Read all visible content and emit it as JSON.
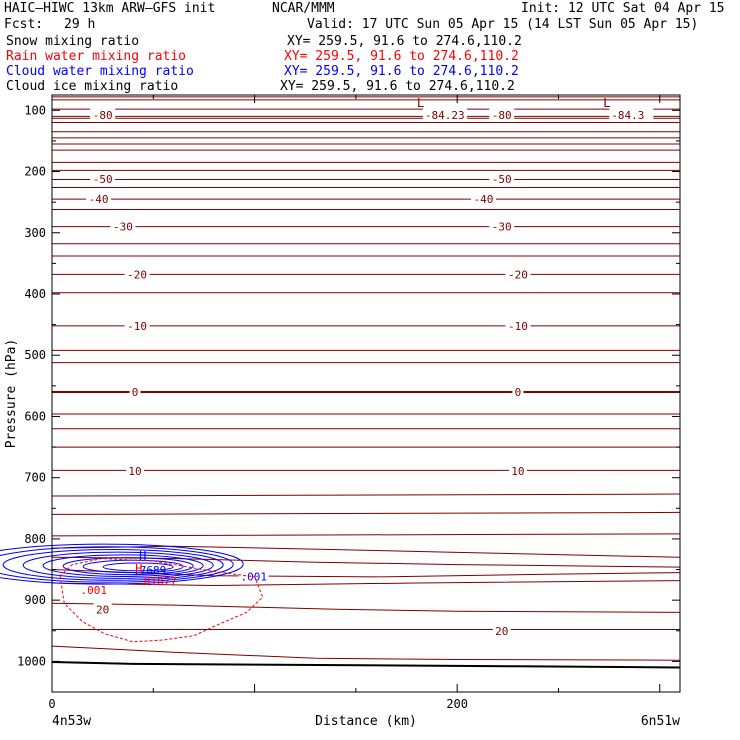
{
  "header": {
    "model": "HAIC–HIWC 13km ARW–GFS init",
    "org": "NCAR/MMM",
    "init": "Init: 12 UTC Sat 04 Apr 15",
    "fcst_label": "Fcst:",
    "fcst_value": "29 h",
    "valid": "Valid: 17 UTC Sun 05 Apr 15 (14 LST Sun 05 Apr 15)"
  },
  "fields": [
    {
      "name": "Snow mixing ratio",
      "xy": "XY= 259.5, 91.6 to 274.6,110.2",
      "color": "#000000"
    },
    {
      "name": "Rain water mixing ratio",
      "xy": "XY= 259.5, 91.6 to 274.6,110.2",
      "color": "#ff0000"
    },
    {
      "name": "Cloud water mixing ratio",
      "xy": "XY= 259.5, 91.6 to 274.6,110.2",
      "color": "#0000ff"
    },
    {
      "name": "Cloud ice mixing ratio",
      "xy": "XY= 259.5, 91.6 to 274.6,110.2",
      "color": "#000000"
    }
  ],
  "chart_data": {
    "type": "cross-section contour",
    "xlabel": "Distance (km)",
    "ylabel": "Pressure (hPa)",
    "x_start_label": "4n53w",
    "x_end_label": "6n51w",
    "xlim": [
      0,
      310
    ],
    "ylim": [
      1050,
      75
    ],
    "x_ticks": [
      0,
      200
    ],
    "y_ticks": [
      100,
      200,
      300,
      400,
      500,
      600,
      700,
      800,
      900,
      1000
    ],
    "colors": {
      "temperature": "#800000",
      "cloud_water": "#0000ff",
      "rain_water": "#ff0000",
      "terrain": "#000000"
    },
    "temperature_contours": [
      {
        "level": -80,
        "p": 110
      },
      {
        "level": -50,
        "p": 213
      },
      {
        "level": -40,
        "p": 245
      },
      {
        "level": -30,
        "p": 290
      },
      {
        "level": -20,
        "p": 368
      },
      {
        "level": -10,
        "p": 452
      },
      {
        "level": 0,
        "p": 560
      },
      {
        "level": 10,
        "p": 688
      },
      {
        "level": 20,
        "p": 948
      }
    ],
    "temperature_labels": [
      {
        "text": "-80",
        "x": 25,
        "p": 108
      },
      {
        "text": "-80",
        "x": 222,
        "p": 108
      },
      {
        "text": "-50",
        "x": 25,
        "p": 212
      },
      {
        "text": "-50",
        "x": 222,
        "p": 212
      },
      {
        "text": "-40",
        "x": 23,
        "p": 245
      },
      {
        "text": "-40",
        "x": 213,
        "p": 245
      },
      {
        "text": "-30",
        "x": 35,
        "p": 290
      },
      {
        "text": "-30",
        "x": 222,
        "p": 290
      },
      {
        "text": "-20",
        "x": 42,
        "p": 368
      },
      {
        "text": "-20",
        "x": 230,
        "p": 368
      },
      {
        "text": "-10",
        "x": 42,
        "p": 452
      },
      {
        "text": "-10",
        "x": 230,
        "p": 452
      },
      {
        "text": "0",
        "x": 41,
        "p": 560
      },
      {
        "text": "0",
        "x": 230,
        "p": 560
      },
      {
        "text": "10",
        "x": 41,
        "p": 689
      },
      {
        "text": "10",
        "x": 230,
        "p": 689
      },
      {
        "text": "20",
        "x": 25,
        "p": 915
      },
      {
        "text": "20",
        "x": 222,
        "p": 950
      }
    ],
    "lows": [
      {
        "symbol": "L",
        "value": "-84.23",
        "x": 190,
        "p": 88
      },
      {
        "symbol": "L",
        "value": "-84.3",
        "x": 282,
        "p": 88
      }
    ],
    "cloud_water": {
      "max_symbol": "H",
      "max_value": ".7689",
      "contour_label": ".001",
      "max_at": {
        "x": 45,
        "p": 828
      },
      "label_at": {
        "x": 99,
        "p": 858
      },
      "levels": 8
    },
    "rain_water": {
      "max_symbol": "H",
      "max_value": ".01877",
      "contour_label": ".001",
      "max_at": {
        "x": 43,
        "p": 849
      },
      "label_at": {
        "x": 19,
        "p": 880
      }
    },
    "terrain_p": 1005
  }
}
